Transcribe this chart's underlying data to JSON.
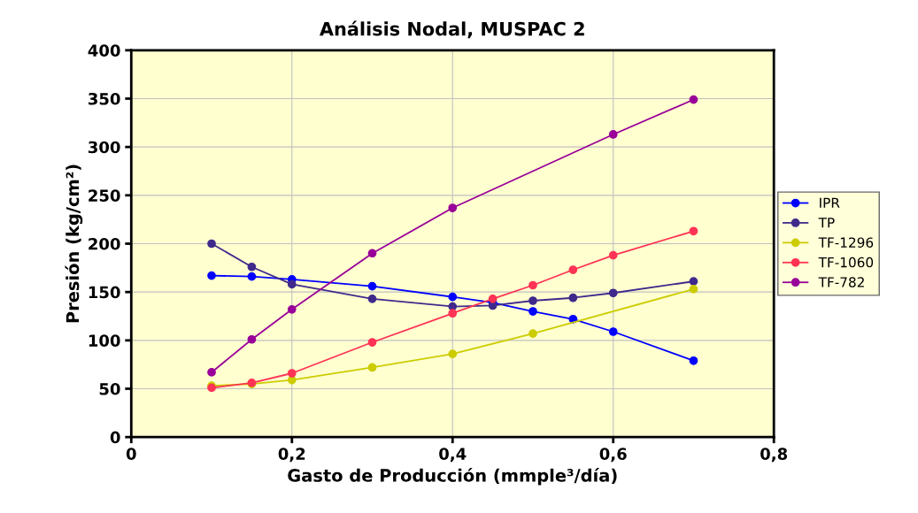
{
  "chart_data": {
    "type": "line",
    "title": "Análisis Nodal, MUSPAC 2",
    "xlabel": "Gasto de Producción (mmple³/día)",
    "ylabel": "Presión (kg/cm²)",
    "series": [
      {
        "name": "IPR",
        "color": "#0000ff",
        "x": [
          0.1,
          0.15,
          0.2,
          0.3,
          0.4,
          0.45,
          0.5,
          0.55,
          0.6,
          0.7
        ],
        "values": [
          167,
          166,
          163,
          156,
          145,
          139,
          130,
          122,
          109,
          79
        ]
      },
      {
        "name": "TP",
        "color": "#3f2a8c",
        "x": [
          0.1,
          0.15,
          0.2,
          0.3,
          0.4,
          0.45,
          0.5,
          0.55,
          0.6,
          0.7
        ],
        "values": [
          200,
          176,
          158,
          143,
          135,
          136,
          141,
          144,
          149,
          161
        ]
      },
      {
        "name": "TF-1296",
        "color": "#cccc00",
        "x": [
          0.1,
          0.15,
          0.2,
          0.3,
          0.4,
          0.5,
          0.7
        ],
        "values": [
          53,
          55,
          59,
          72,
          86,
          107,
          153
        ]
      },
      {
        "name": "TF-1060",
        "color": "#ff3355",
        "x": [
          0.1,
          0.15,
          0.2,
          0.3,
          0.4,
          0.45,
          0.5,
          0.55,
          0.6,
          0.7
        ],
        "values": [
          51,
          56,
          66,
          98,
          128,
          143,
          157,
          173,
          188,
          213
        ]
      },
      {
        "name": "TF-782",
        "color": "#990099",
        "x": [
          0.1,
          0.15,
          0.2,
          0.3,
          0.4,
          0.6,
          0.7
        ],
        "values": [
          67,
          101,
          132,
          190,
          237,
          313,
          349
        ]
      }
    ],
    "xlim": [
      0,
      0.8
    ],
    "xticks": [
      0,
      {
        "value": 0.2,
        "label": "0,2"
      },
      {
        "value": 0.4,
        "label": "0,4"
      },
      {
        "value": 0.6,
        "label": "0,6"
      },
      {
        "value": 0.8,
        "label": "0,8"
      }
    ],
    "ylim": [
      0,
      400
    ],
    "yticks": [
      0,
      50,
      100,
      150,
      200,
      250,
      300,
      350,
      400
    ],
    "grid": true,
    "legend": "right",
    "marker": "circle",
    "line_style": "solid"
  }
}
